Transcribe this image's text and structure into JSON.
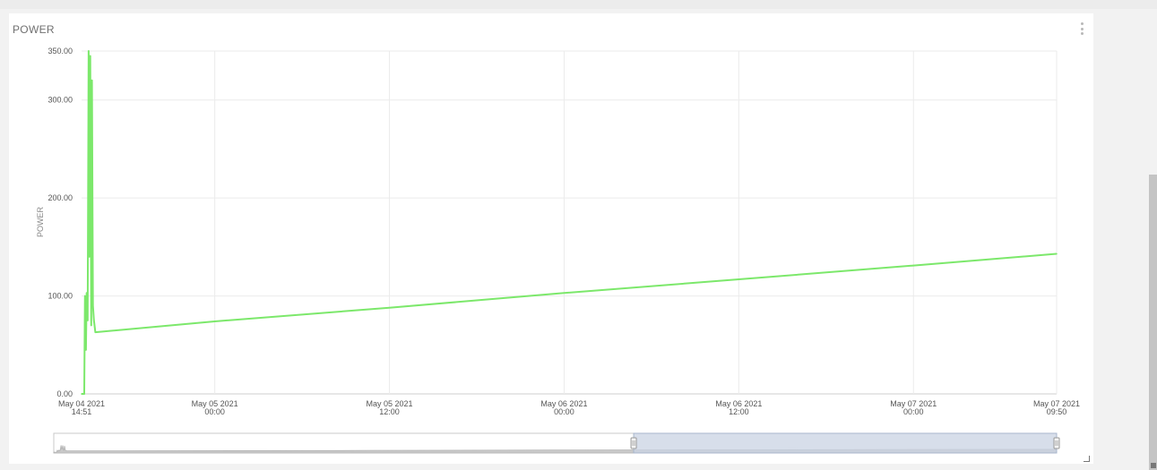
{
  "panel": {
    "title": "POWER",
    "menu_icon": "vertical-dots-icon"
  },
  "colors": {
    "series": "#7ce86b",
    "grid": "#ebebeb",
    "axis_text": "#555555",
    "navigator_fill": "#c9c9c9",
    "navigator_selection": "#c9d3e3"
  },
  "chart_data": {
    "type": "line",
    "title": "",
    "xlabel": "",
    "ylabel": "POWER",
    "ylim": [
      0,
      350
    ],
    "xlim": [
      "2021-05-04 14:51",
      "2021-05-07 09:50"
    ],
    "y_ticks": [
      "0.00",
      "100.00",
      "200.00",
      "300.00",
      "350.00"
    ],
    "x_ticks": [
      {
        "line1": "May 04 2021",
        "line2": "14:51",
        "at": "2021-05-04 14:51"
      },
      {
        "line1": "May 05 2021",
        "line2": "00:00",
        "at": "2021-05-05 00:00"
      },
      {
        "line1": "May 05 2021",
        "line2": "12:00",
        "at": "2021-05-05 12:00"
      },
      {
        "line1": "May 06 2021",
        "line2": "00:00",
        "at": "2021-05-06 00:00"
      },
      {
        "line1": "May 06 2021",
        "line2": "12:00",
        "at": "2021-05-06 12:00"
      },
      {
        "line1": "May 07 2021",
        "line2": "00:00",
        "at": "2021-05-07 00:00"
      },
      {
        "line1": "May 07 2021",
        "line2": "09:50",
        "at": "2021-05-07 09:50"
      }
    ],
    "grid": true,
    "series": [
      {
        "x": [
          "2021-05-04 14:51",
          "2021-05-04 15:02",
          "2021-05-04 15:05",
          "2021-05-04 15:09",
          "2021-05-04 15:12",
          "2021-05-04 15:16",
          "2021-05-04 15:20",
          "2021-05-04 15:23",
          "2021-05-04 15:27",
          "2021-05-04 15:31",
          "2021-05-04 15:34",
          "2021-05-04 15:38",
          "2021-05-04 15:42",
          "2021-05-04 15:48",
          "2021-05-05 00:00",
          "2021-05-05 12:00",
          "2021-05-06 00:00",
          "2021-05-06 12:00",
          "2021-05-07 00:00",
          "2021-05-07 09:50"
        ],
        "y": [
          0,
          0,
          100,
          45,
          103,
          75,
          350,
          140,
          345,
          70,
          320,
          90,
          75,
          63,
          74,
          88,
          103,
          117,
          131,
          143
        ]
      }
    ],
    "navigator": {
      "selection_start": "2021-05-06 05:35",
      "selection_end": "2021-05-07 09:50"
    }
  }
}
